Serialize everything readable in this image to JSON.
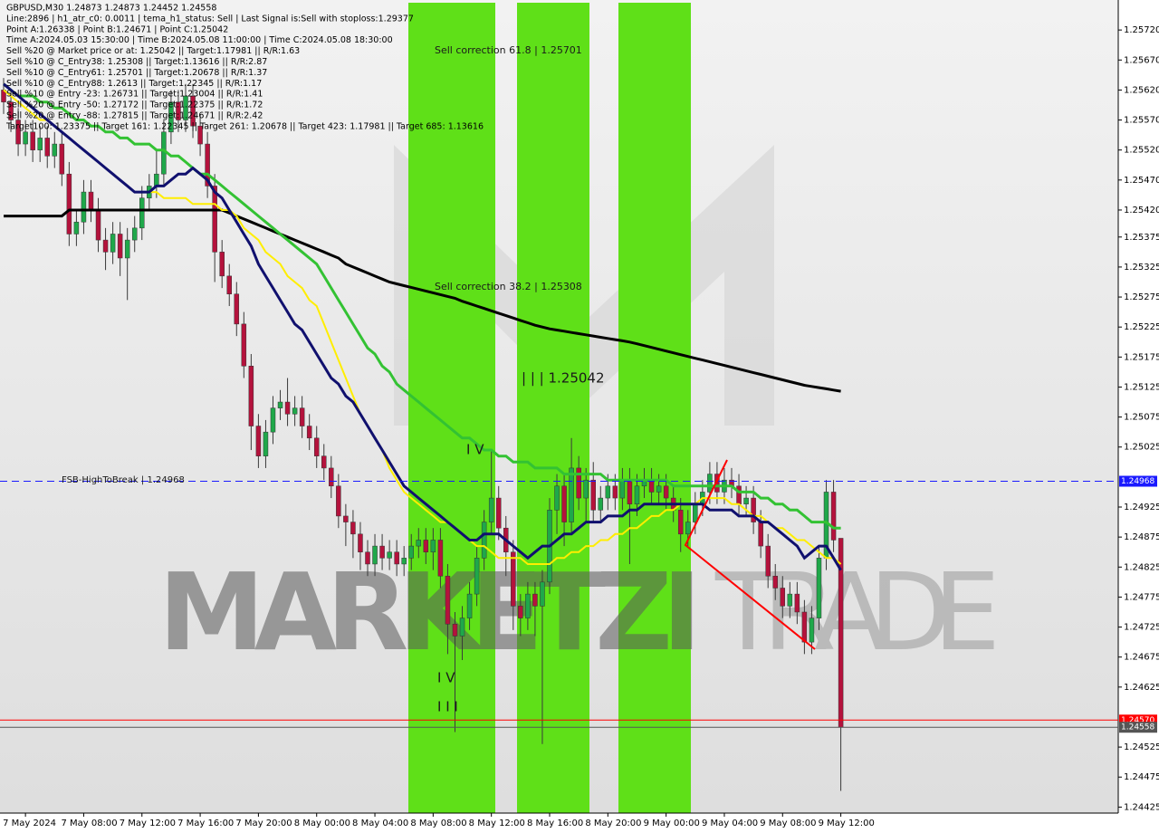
{
  "info_lines": [
    "GBPUSD,M30  1.24873 1.24873 1.24452 1.24558",
    "Line:2896 | h1_atr_c0: 0.0011 | tema_h1_status: Sell | Last Signal is:Sell with stoploss:1.29377",
    "Point A:1.26338 | Point B:1.24671 | Point C:1.25042",
    "Time A:2024.05.03 15:30:00 | Time B:2024.05.08 11:00:00 | Time C:2024.05.08 18:30:00",
    "Sell %20 @ Market price or at: 1.25042 || Target:1.17981 || R/R:1.63",
    "Sell %10 @ C_Entry38: 1.25308 || Target:1.13616 || R/R:2.87",
    "Sell %10 @ C_Entry61: 1.25701 || Target:1.20678 || R/R:1.37",
    "Sell %10 @ C_Entry88: 1.2613 || Target:1.22345 || R/R:1.17",
    "Sell %10 @ Entry -23: 1.26731 || Target:1.23004 || R/R:1.41",
    "Sell %20 @ Entry -50: 1.27172 || Target:1.22375 || R/R:1.72",
    "Sell %20 @ Entry -88: 1.27815 || Target:1.24671 || R/R:2.42",
    "Target100: 1.23375 || Target 161: 1.22345 || Target 261: 1.20678 || Target 423: 1.17981 || Target 685: 1.13616"
  ],
  "watermark": [
    "MARKETZI",
    "TRADE"
  ],
  "chart_data": {
    "type": "candlestick",
    "up_color": "#1fa84a",
    "down_color": "#b4123c",
    "categories": [
      null,
      null,
      null,
      "7 May 2024",
      null,
      null,
      null,
      null,
      null,
      null,
      null,
      "7 May 08:00",
      null,
      null,
      null,
      null,
      null,
      null,
      null,
      "7 May 12:00",
      null,
      null,
      null,
      null,
      null,
      null,
      null,
      "7 May 16:00",
      null,
      null,
      null,
      null,
      null,
      null,
      null,
      "7 May 20:00",
      null,
      null,
      null,
      null,
      null,
      null,
      null,
      "8 May 00:00",
      null,
      null,
      null,
      null,
      null,
      null,
      null,
      "8 May 04:00",
      null,
      null,
      null,
      null,
      null,
      null,
      null,
      "8 May 08:00",
      null,
      null,
      null,
      null,
      null,
      null,
      null,
      "8 May 12:00",
      null,
      null,
      null,
      null,
      null,
      null,
      null,
      "8 May 16:00",
      null,
      null,
      null,
      null,
      null,
      null,
      null,
      "8 May 20:00",
      null,
      null,
      null,
      null,
      null,
      null,
      null,
      "9 May 00:00",
      null,
      null,
      null,
      null,
      null,
      null,
      null,
      "9 May 04:00",
      null,
      null,
      null,
      null,
      null,
      null,
      null,
      "9 May 08:00",
      null,
      null,
      null,
      null,
      null,
      null,
      null,
      "9 May 12:00"
    ],
    "open": [
      1.2562,
      1.256,
      1.2557,
      1.2553,
      1.2555,
      1.2552,
      1.2554,
      1.2551,
      1.2553,
      1.2548,
      1.2538,
      1.254,
      1.2545,
      1.2542,
      1.2537,
      1.2535,
      1.2538,
      1.2534,
      1.2537,
      1.2539,
      1.2544,
      1.2546,
      1.2548,
      1.2555,
      1.256,
      1.2557,
      1.2561,
      1.2556,
      1.2553,
      1.2546,
      1.2535,
      1.2531,
      1.2528,
      1.2523,
      1.2516,
      1.2506,
      1.2501,
      1.2505,
      1.2509,
      1.251,
      1.2508,
      1.2509,
      1.2506,
      1.2504,
      1.2501,
      1.2499,
      1.2496,
      1.2491,
      1.249,
      1.2488,
      1.2485,
      1.2483,
      1.2486,
      1.2484,
      1.2485,
      1.2483,
      1.2484,
      1.2486,
      1.2487,
      1.2485,
      1.2487,
      1.2481,
      1.2473,
      1.2471,
      1.2474,
      1.2478,
      1.2484,
      1.249,
      1.2494,
      1.2489,
      1.2485,
      1.2476,
      1.2474,
      1.2478,
      1.2476,
      1.248,
      1.2492,
      1.2496,
      1.249,
      1.2499,
      1.2494,
      1.2497,
      1.2492,
      1.2494,
      1.2496,
      1.2494,
      1.2497,
      1.2493,
      1.2496,
      1.2497,
      1.2495,
      1.2496,
      1.2494,
      1.2492,
      1.2488,
      1.249,
      1.2493,
      1.2495,
      1.2498,
      1.2495,
      1.2497,
      1.2496,
      1.2493,
      1.2494,
      1.249,
      1.2486,
      1.2481,
      1.2479,
      1.2476,
      1.2478,
      1.2475,
      1.247,
      1.2474,
      1.2484,
      1.2495,
      1.24873
    ],
    "high": [
      1.2564,
      1.2562,
      1.2559,
      1.2557,
      1.2557,
      1.2556,
      1.2556,
      1.2555,
      1.2555,
      1.255,
      1.2542,
      1.2547,
      1.2547,
      1.2544,
      1.2539,
      1.254,
      1.254,
      1.2539,
      1.2541,
      1.2546,
      1.2548,
      1.2552,
      1.2557,
      1.2562,
      1.2562,
      1.2563,
      1.2563,
      1.2558,
      1.2555,
      1.2548,
      1.2537,
      1.2533,
      1.253,
      1.2525,
      1.2518,
      1.2508,
      1.2507,
      1.2511,
      1.2512,
      1.2514,
      1.2511,
      1.2511,
      1.2508,
      1.2506,
      1.2503,
      1.2501,
      1.2498,
      1.2493,
      1.2492,
      1.249,
      1.2487,
      1.2488,
      1.2488,
      1.2487,
      1.2487,
      1.2486,
      1.2488,
      1.2489,
      1.2489,
      1.2489,
      1.2489,
      1.2483,
      1.2475,
      1.2476,
      1.248,
      1.2486,
      1.2492,
      1.2502,
      1.2496,
      1.2491,
      1.2487,
      1.2478,
      1.248,
      1.248,
      1.2482,
      1.2494,
      1.2498,
      1.2498,
      1.2504,
      1.2501,
      1.2499,
      1.25,
      1.2496,
      1.2498,
      1.2498,
      1.2499,
      1.2499,
      1.2498,
      1.2499,
      1.2499,
      1.2498,
      1.2498,
      1.2496,
      1.2494,
      1.2492,
      1.2495,
      1.2497,
      1.25,
      1.25,
      1.2499,
      1.2499,
      1.2498,
      1.2496,
      1.2496,
      1.2492,
      1.2488,
      1.2483,
      1.2481,
      1.248,
      1.248,
      1.2477,
      1.2476,
      1.2486,
      1.2497,
      1.2497,
      1.24873
    ],
    "low": [
      1.2558,
      1.2555,
      1.2551,
      1.2551,
      1.255,
      1.255,
      1.2549,
      1.2549,
      1.2546,
      1.2536,
      1.2536,
      1.2538,
      1.254,
      1.2535,
      1.2532,
      1.2533,
      1.2531,
      1.2527,
      1.2535,
      1.2537,
      1.2542,
      1.2544,
      1.2546,
      1.2553,
      1.2555,
      1.2555,
      1.2554,
      1.2551,
      1.2544,
      1.253,
      1.2529,
      1.2526,
      1.2521,
      1.2514,
      1.2502,
      1.2499,
      1.2499,
      1.2503,
      1.2507,
      1.2506,
      1.2506,
      1.2504,
      1.2502,
      1.2499,
      1.2497,
      1.2494,
      1.2489,
      1.2486,
      1.2484,
      1.2482,
      1.2481,
      1.2481,
      1.2482,
      1.2482,
      1.2481,
      1.2481,
      1.2482,
      1.2484,
      1.2483,
      1.2482,
      1.2479,
      1.2468,
      1.2455,
      1.2467,
      1.2472,
      1.2476,
      1.2482,
      1.2488,
      1.2487,
      1.2481,
      1.2472,
      1.2471,
      1.2472,
      1.2471,
      1.2453,
      1.2478,
      1.2488,
      1.2486,
      1.2488,
      1.2492,
      1.249,
      1.249,
      1.249,
      1.2492,
      1.2492,
      1.2492,
      1.2483,
      1.2491,
      1.2494,
      1.2493,
      1.2493,
      1.2492,
      1.249,
      1.2485,
      1.2486,
      1.2488,
      1.2491,
      1.2493,
      1.2493,
      1.2493,
      1.2494,
      1.2491,
      1.2491,
      1.2488,
      1.2484,
      1.2479,
      1.2477,
      1.2474,
      1.2474,
      1.2473,
      1.2468,
      1.2468,
      1.2472,
      1.2482,
      1.2485,
      1.24452
    ],
    "close": [
      1.256,
      1.2557,
      1.2553,
      1.2555,
      1.2552,
      1.2554,
      1.2551,
      1.2553,
      1.2548,
      1.2538,
      1.254,
      1.2545,
      1.2542,
      1.2537,
      1.2535,
      1.2538,
      1.2534,
      1.2537,
      1.2539,
      1.2544,
      1.2546,
      1.2548,
      1.2555,
      1.256,
      1.2557,
      1.2561,
      1.2556,
      1.2553,
      1.2546,
      1.2535,
      1.2531,
      1.2528,
      1.2523,
      1.2516,
      1.2506,
      1.2501,
      1.2505,
      1.2509,
      1.251,
      1.2508,
      1.2509,
      1.2506,
      1.2504,
      1.2501,
      1.2499,
      1.2496,
      1.2491,
      1.249,
      1.2488,
      1.2485,
      1.2483,
      1.2486,
      1.2484,
      1.2485,
      1.2483,
      1.2484,
      1.2486,
      1.2487,
      1.2485,
      1.2487,
      1.2481,
      1.2473,
      1.2471,
      1.2474,
      1.2478,
      1.2484,
      1.249,
      1.2494,
      1.2489,
      1.2485,
      1.2476,
      1.2474,
      1.2478,
      1.2476,
      1.248,
      1.2492,
      1.2496,
      1.249,
      1.2499,
      1.2494,
      1.2497,
      1.2492,
      1.2494,
      1.2496,
      1.2494,
      1.2497,
      1.2493,
      1.2496,
      1.2497,
      1.2495,
      1.2496,
      1.2494,
      1.2492,
      1.2488,
      1.249,
      1.2493,
      1.2495,
      1.2498,
      1.2495,
      1.2497,
      1.2496,
      1.2493,
      1.2494,
      1.249,
      1.2486,
      1.2481,
      1.2479,
      1.2476,
      1.2478,
      1.2475,
      1.247,
      1.2474,
      1.2484,
      1.2495,
      1.2487,
      1.24558
    ],
    "series": [
      {
        "color": "#000000",
        "width": 3,
        "values": [
          1.2541,
          1.2541,
          1.2541,
          1.2541,
          1.2541,
          1.2541,
          1.2541,
          1.2541,
          1.2541,
          1.2542,
          1.2542,
          1.2542,
          1.2542,
          1.2542,
          1.2542,
          1.2542,
          1.2542,
          1.2542,
          1.2542,
          1.2542,
          1.2542,
          1.2542,
          1.2542,
          1.2542,
          1.2542,
          1.2542,
          1.2542,
          1.2542,
          1.2542,
          1.2542,
          1.2542,
          1.25415,
          1.2541,
          1.25405,
          1.254,
          1.25395,
          1.2539,
          1.25385,
          1.2538,
          1.25375,
          1.2537,
          1.25365,
          1.2536,
          1.25355,
          1.2535,
          1.25345,
          1.2534,
          1.2533,
          1.25325,
          1.2532,
          1.25315,
          1.2531,
          1.25305,
          1.253,
          1.25297,
          1.25294,
          1.25291,
          1.25288,
          1.25285,
          1.25282,
          1.25279,
          1.25276,
          1.25273,
          1.25268,
          1.25264,
          1.2526,
          1.25256,
          1.25252,
          1.25248,
          1.25244,
          1.2524,
          1.25236,
          1.25232,
          1.25228,
          1.25225,
          1.25222,
          1.2522,
          1.25218,
          1.25216,
          1.25214,
          1.25212,
          1.2521,
          1.25208,
          1.25206,
          1.25204,
          1.25202,
          1.252,
          1.25197,
          1.25194,
          1.25191,
          1.25188,
          1.25185,
          1.25182,
          1.25179,
          1.25176,
          1.25173,
          1.2517,
          1.25167,
          1.25164,
          1.25161,
          1.25158,
          1.25155,
          1.25152,
          1.25149,
          1.25146,
          1.25143,
          1.2514,
          1.25137,
          1.25134,
          1.25131,
          1.25128,
          1.25126,
          1.25124,
          1.25122,
          1.2512,
          1.25118
        ]
      },
      {
        "color": "#33c233",
        "width": 3,
        "values": [
          1.2563,
          1.2562,
          1.2561,
          1.2561,
          1.2561,
          1.256,
          1.256,
          1.2559,
          1.2559,
          1.2558,
          1.2557,
          1.2557,
          1.2556,
          1.2556,
          1.2555,
          1.2555,
          1.2554,
          1.2554,
          1.2553,
          1.2553,
          1.2553,
          1.2552,
          1.2552,
          1.2551,
          1.2551,
          1.255,
          1.2549,
          1.2548,
          1.2548,
          1.2547,
          1.2546,
          1.2545,
          1.2544,
          1.2543,
          1.2542,
          1.2541,
          1.254,
          1.2539,
          1.2538,
          1.2537,
          1.2536,
          1.2535,
          1.2534,
          1.2533,
          1.2531,
          1.2529,
          1.2527,
          1.2525,
          1.2523,
          1.2521,
          1.2519,
          1.2518,
          1.2516,
          1.2515,
          1.2513,
          1.2512,
          1.2511,
          1.251,
          1.2509,
          1.2508,
          1.2507,
          1.2506,
          1.2505,
          1.2504,
          1.2504,
          1.2503,
          1.2502,
          1.2502,
          1.2501,
          1.2501,
          1.25,
          1.25,
          1.25,
          1.2499,
          1.2499,
          1.2499,
          1.2499,
          1.2498,
          1.2498,
          1.2498,
          1.2498,
          1.2498,
          1.2498,
          1.2497,
          1.2497,
          1.2497,
          1.2497,
          1.2497,
          1.2497,
          1.2497,
          1.2497,
          1.2497,
          1.2496,
          1.2496,
          1.2496,
          1.2496,
          1.2496,
          1.2496,
          1.2496,
          1.2496,
          1.2496,
          1.2495,
          1.2495,
          1.2495,
          1.2494,
          1.2494,
          1.2493,
          1.2493,
          1.2492,
          1.2492,
          1.2491,
          1.249,
          1.249,
          1.249,
          1.2489,
          1.2489
        ]
      },
      {
        "color": "#ffee00",
        "width": 2,
        "values": [
          1.2562,
          1.2561,
          1.256,
          1.2559,
          1.2558,
          1.2557,
          1.2557,
          1.2556,
          1.2555,
          1.2554,
          1.2553,
          1.2552,
          1.2551,
          1.255,
          1.2549,
          1.2548,
          1.2547,
          1.2546,
          1.2545,
          1.2545,
          1.2545,
          1.2545,
          1.2544,
          1.2544,
          1.2544,
          1.2544,
          1.2543,
          1.2543,
          1.2543,
          1.2543,
          1.2542,
          1.2542,
          1.2541,
          1.2539,
          1.2538,
          1.2537,
          1.2535,
          1.2534,
          1.2533,
          1.2531,
          1.253,
          1.2529,
          1.2527,
          1.2526,
          1.2523,
          1.252,
          1.2517,
          1.2514,
          1.2511,
          1.2508,
          1.2506,
          1.2504,
          1.2502,
          1.2499,
          1.2497,
          1.2495,
          1.2494,
          1.2493,
          1.2492,
          1.2491,
          1.249,
          1.249,
          1.2489,
          1.2488,
          1.2487,
          1.2486,
          1.2486,
          1.2485,
          1.2484,
          1.2484,
          1.2484,
          1.2484,
          1.2483,
          1.2483,
          1.2483,
          1.2483,
          1.2484,
          1.2484,
          1.2485,
          1.2485,
          1.2486,
          1.2486,
          1.2487,
          1.2487,
          1.2488,
          1.2488,
          1.2489,
          1.2489,
          1.249,
          1.2491,
          1.2491,
          1.2492,
          1.2492,
          1.2493,
          1.2493,
          1.2493,
          1.2494,
          1.2494,
          1.2494,
          1.2494,
          1.2493,
          1.2493,
          1.2492,
          1.2491,
          1.2491,
          1.249,
          1.2489,
          1.2489,
          1.2488,
          1.2487,
          1.2487,
          1.2486,
          1.2485,
          1.2484,
          1.2484,
          1.2483
        ]
      },
      {
        "color": "#10106e",
        "width": 3,
        "values": [
          1.2563,
          1.2562,
          1.2561,
          1.256,
          1.2559,
          1.2558,
          1.2557,
          1.2556,
          1.2555,
          1.2554,
          1.2553,
          1.2552,
          1.2551,
          1.255,
          1.2549,
          1.2548,
          1.2547,
          1.2546,
          1.2545,
          1.2545,
          1.2545,
          1.2546,
          1.2546,
          1.2547,
          1.2548,
          1.2548,
          1.2549,
          1.2548,
          1.2547,
          1.2545,
          1.2544,
          1.2542,
          1.254,
          1.2538,
          1.2536,
          1.2533,
          1.2531,
          1.2529,
          1.2527,
          1.2525,
          1.2523,
          1.2522,
          1.252,
          1.2518,
          1.2516,
          1.2514,
          1.2513,
          1.2511,
          1.251,
          1.2508,
          1.2506,
          1.2504,
          1.2502,
          1.25,
          1.2498,
          1.2496,
          1.2495,
          1.2494,
          1.2493,
          1.2492,
          1.2491,
          1.249,
          1.2489,
          1.2488,
          1.2487,
          1.2487,
          1.2488,
          1.2488,
          1.2488,
          1.2487,
          1.2486,
          1.2485,
          1.2484,
          1.2485,
          1.2486,
          1.2486,
          1.2487,
          1.2488,
          1.2488,
          1.2489,
          1.249,
          1.249,
          1.249,
          1.2491,
          1.2491,
          1.2491,
          1.2492,
          1.2492,
          1.2493,
          1.2493,
          1.2493,
          1.2493,
          1.2493,
          1.2493,
          1.2493,
          1.2493,
          1.2493,
          1.2492,
          1.2492,
          1.2492,
          1.2492,
          1.2491,
          1.2491,
          1.2491,
          1.249,
          1.249,
          1.2489,
          1.2488,
          1.2487,
          1.2486,
          1.2484,
          1.2485,
          1.2486,
          1.2486,
          1.2484,
          1.2482
        ]
      }
    ],
    "levels": [
      {
        "value": 1.24968,
        "color": "#1a1aff",
        "dashed": true
      },
      {
        "value": 1.2457,
        "label": "1.24570",
        "color": "#ff0000"
      },
      {
        "value": 1.24558,
        "color": "#555555"
      }
    ],
    "annotations": [
      "Sell correction 61.8 | 1.25701",
      "Sell correction 38.2 | 1.25308",
      "| | | 1.25042",
      "I V",
      "I V",
      "I I I",
      "FSB-HighToBreak | 1.24968"
    ],
    "ylim": [
      1.24415,
      1.2577
    ],
    "yticks": [
      {
        "value": 1.2572,
        "label": "1.25720"
      },
      {
        "value": 1.2567,
        "label": "1.25670"
      },
      {
        "value": 1.2562,
        "label": "1.25620"
      },
      {
        "value": 1.2557,
        "label": "1.25570"
      },
      {
        "value": 1.2552,
        "label": "1.25520"
      },
      {
        "value": 1.2547,
        "label": "1.25470"
      },
      {
        "value": 1.2542,
        "label": "1.25420"
      },
      1.25375,
      1.25325,
      1.25275,
      1.25225,
      1.25175,
      1.25125,
      1.25075,
      1.25025,
      1.24925,
      1.24875,
      1.24825,
      1.24775,
      1.24725,
      1.24675,
      1.24625,
      1.24525,
      1.24475,
      1.24425
    ]
  }
}
